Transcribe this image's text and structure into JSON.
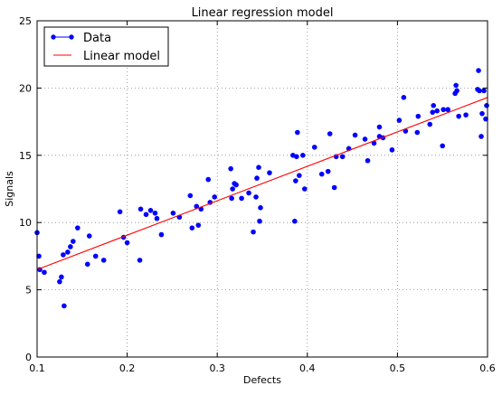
{
  "chart_data": {
    "type": "scatter",
    "title": "Linear regression model",
    "xlabel": "Defects",
    "ylabel": "Signals",
    "xlim": [
      0.1,
      0.6
    ],
    "ylim": [
      0,
      25
    ],
    "x_ticks": [
      "0.1",
      "0.2",
      "0.3",
      "0.4",
      "0.5",
      "0.6"
    ],
    "y_ticks": [
      "0",
      "5",
      "10",
      "15",
      "20",
      "25"
    ],
    "grid": true,
    "legend": {
      "position": "top-left",
      "entries": [
        "Data",
        "Linear model"
      ]
    },
    "colors": {
      "data": "#0000ff",
      "model": "#ff0000"
    },
    "series": [
      {
        "name": "Data",
        "kind": "scatter",
        "points": [
          [
            0.1,
            9.25
          ],
          [
            0.102,
            7.5
          ],
          [
            0.103,
            6.5
          ],
          [
            0.108,
            6.3
          ],
          [
            0.125,
            5.6
          ],
          [
            0.127,
            5.95
          ],
          [
            0.129,
            7.6
          ],
          [
            0.13,
            3.8
          ],
          [
            0.134,
            7.8
          ],
          [
            0.137,
            8.2
          ],
          [
            0.14,
            8.6
          ],
          [
            0.145,
            9.6
          ],
          [
            0.156,
            6.9
          ],
          [
            0.158,
            9.0
          ],
          [
            0.165,
            7.5
          ],
          [
            0.174,
            7.2
          ],
          [
            0.192,
            10.8
          ],
          [
            0.196,
            8.9
          ],
          [
            0.2,
            8.5
          ],
          [
            0.214,
            7.2
          ],
          [
            0.215,
            11.0
          ],
          [
            0.221,
            10.6
          ],
          [
            0.226,
            10.9
          ],
          [
            0.231,
            10.7
          ],
          [
            0.233,
            10.3
          ],
          [
            0.238,
            9.1
          ],
          [
            0.251,
            10.7
          ],
          [
            0.258,
            10.4
          ],
          [
            0.27,
            12.0
          ],
          [
            0.272,
            9.6
          ],
          [
            0.277,
            11.2
          ],
          [
            0.279,
            9.8
          ],
          [
            0.282,
            11.0
          ],
          [
            0.29,
            13.2
          ],
          [
            0.292,
            11.5
          ],
          [
            0.297,
            11.9
          ],
          [
            0.315,
            14.0
          ],
          [
            0.316,
            11.8
          ],
          [
            0.317,
            12.5
          ],
          [
            0.319,
            12.9
          ],
          [
            0.321,
            12.8
          ],
          [
            0.327,
            11.8
          ],
          [
            0.335,
            12.2
          ],
          [
            0.34,
            9.3
          ],
          [
            0.343,
            11.9
          ],
          [
            0.344,
            13.3
          ],
          [
            0.346,
            14.1
          ],
          [
            0.347,
            10.1
          ],
          [
            0.348,
            11.1
          ],
          [
            0.358,
            13.7
          ],
          [
            0.384,
            15.0
          ],
          [
            0.386,
            10.1
          ],
          [
            0.387,
            13.1
          ],
          [
            0.388,
            14.9
          ],
          [
            0.389,
            16.7
          ],
          [
            0.391,
            13.5
          ],
          [
            0.395,
            15.0
          ],
          [
            0.397,
            12.5
          ],
          [
            0.408,
            15.6
          ],
          [
            0.416,
            13.6
          ],
          [
            0.423,
            13.8
          ],
          [
            0.425,
            16.6
          ],
          [
            0.43,
            12.6
          ],
          [
            0.432,
            14.9
          ],
          [
            0.439,
            14.9
          ],
          [
            0.446,
            15.5
          ],
          [
            0.453,
            16.5
          ],
          [
            0.464,
            16.2
          ],
          [
            0.467,
            14.6
          ],
          [
            0.474,
            15.9
          ],
          [
            0.48,
            17.1
          ],
          [
            0.48,
            16.4
          ],
          [
            0.484,
            16.3
          ],
          [
            0.494,
            15.4
          ],
          [
            0.502,
            17.6
          ],
          [
            0.507,
            19.3
          ],
          [
            0.509,
            16.8
          ],
          [
            0.522,
            16.7
          ],
          [
            0.523,
            17.9
          ],
          [
            0.536,
            17.3
          ],
          [
            0.539,
            18.2
          ],
          [
            0.54,
            18.7
          ],
          [
            0.544,
            18.3
          ],
          [
            0.55,
            15.7
          ],
          [
            0.551,
            18.4
          ],
          [
            0.556,
            18.4
          ],
          [
            0.564,
            19.6
          ],
          [
            0.565,
            20.2
          ],
          [
            0.566,
            19.8
          ],
          [
            0.568,
            17.9
          ],
          [
            0.576,
            18.0
          ],
          [
            0.589,
            19.9
          ],
          [
            0.59,
            21.3
          ],
          [
            0.591,
            19.8
          ],
          [
            0.593,
            16.4
          ],
          [
            0.594,
            18.1
          ],
          [
            0.596,
            19.8
          ],
          [
            0.598,
            17.7
          ],
          [
            0.599,
            18.7
          ]
        ]
      },
      {
        "name": "Linear model",
        "kind": "line",
        "points": [
          [
            0.1,
            6.5
          ],
          [
            0.6,
            19.3
          ]
        ]
      }
    ]
  }
}
